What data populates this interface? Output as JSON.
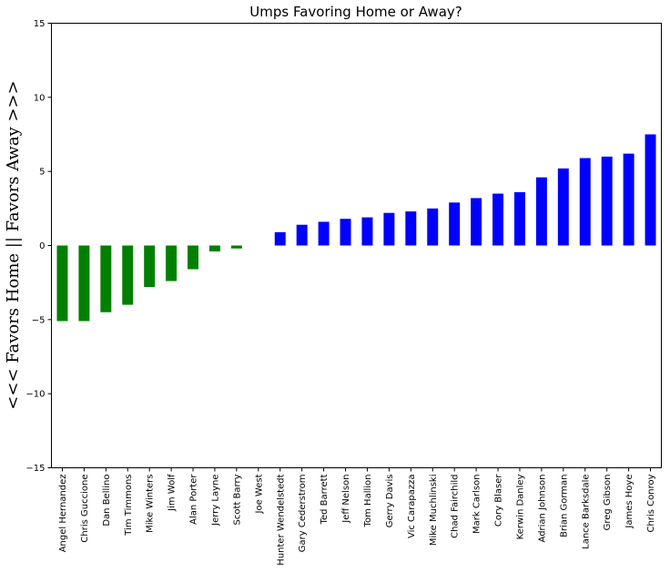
{
  "chart_data": {
    "type": "bar",
    "title": "Umps Favoring Home or Away?",
    "xlabel": "",
    "ylabel": "<<<  Favors Home || Favors Away  >>>",
    "ylim": [
      -15,
      15
    ],
    "yticks": [
      -15,
      -10,
      -5,
      0,
      5,
      10,
      15
    ],
    "grid": false,
    "colors": {
      "favors_home": "#008000",
      "favors_away": "#0000ff"
    },
    "categories": [
      "Angel Hernandez",
      "Chris Guccione",
      "Dan Bellino",
      "Tim Timmons",
      "Mike Winters",
      "Jim Wolf",
      "Alan Porter",
      "Jerry Layne",
      "Scott Barry",
      "Joe West",
      "Hunter Wendelstedt",
      "Gary Cederstrom",
      "Ted Barrett",
      "Jeff Nelson",
      "Tom Hallion",
      "Gerry Davis",
      "Vic Carapazza",
      "Mike Muchlinski",
      "Chad Fairchild",
      "Mark Carlson",
      "Cory Blaser",
      "Kerwin Danley",
      "Adrian Johnson",
      "Brian Gorman",
      "Lance Barksdale",
      "Greg Gibson",
      "James Hoye",
      "Chris Conroy"
    ],
    "values": [
      -5.1,
      -5.1,
      -4.5,
      -4.0,
      -2.8,
      -2.4,
      -1.6,
      -0.4,
      -0.2,
      0.0,
      0.9,
      1.4,
      1.6,
      1.8,
      1.9,
      2.2,
      2.3,
      2.5,
      2.9,
      3.2,
      3.5,
      3.6,
      4.6,
      5.2,
      5.9,
      6.0,
      6.2,
      7.5
    ]
  }
}
